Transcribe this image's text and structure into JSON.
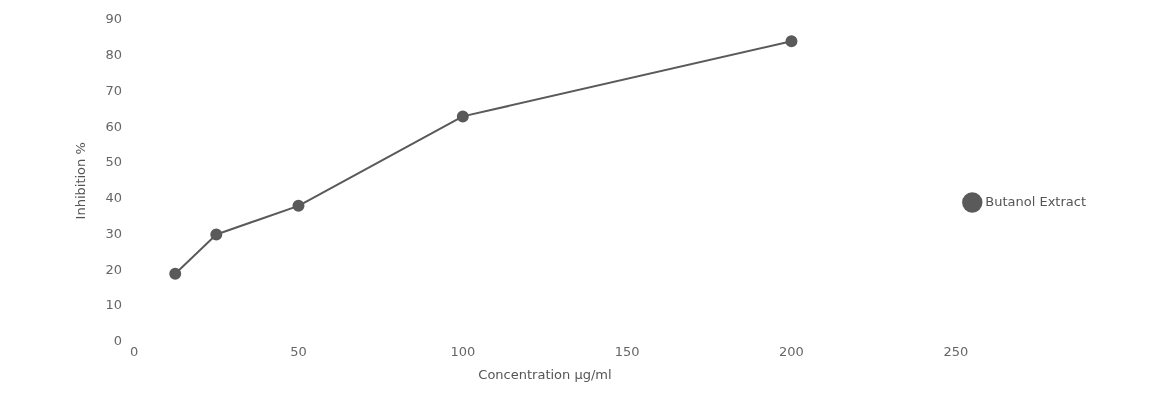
{
  "chart_data": {
    "type": "line",
    "xlabel": "Concentration µg/ml",
    "ylabel": "Inhibition %",
    "x": [
      12.5,
      25,
      50,
      100,
      200
    ],
    "series": [
      {
        "name": "Butanol Extract",
        "color": "#5a5a5a",
        "values": [
          19,
          30,
          38,
          63,
          84
        ]
      }
    ],
    "xlim": [
      0,
      250
    ],
    "xticks": [
      0,
      50,
      100,
      150,
      200,
      250
    ],
    "ylim": [
      0,
      90
    ],
    "yticks": [
      0,
      10,
      20,
      30,
      40,
      50,
      60,
      70,
      80,
      90
    ],
    "grid": false,
    "legend": "right",
    "marker": "circle",
    "line_style": "solid"
  }
}
